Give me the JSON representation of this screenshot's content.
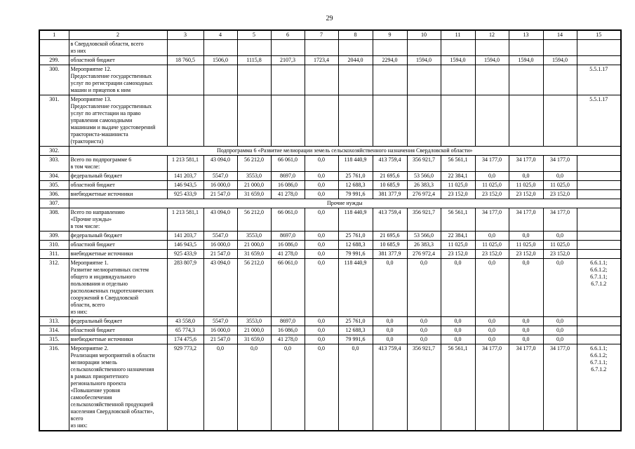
{
  "page": {
    "number": "29"
  },
  "table": {
    "header": [
      "1",
      "2",
      "3",
      "4",
      "5",
      "6",
      "7",
      "8",
      "9",
      "10",
      "11",
      "12",
      "13",
      "14",
      "15"
    ],
    "rows": [
      {
        "num": "",
        "name": "в Свердловской области, всего\nиз них",
        "values": [
          "",
          "",
          "",
          "",
          "",
          "",
          "",
          "",
          "",
          "",
          "",
          ""
        ],
        "target": ""
      },
      {
        "num": "299.",
        "name": "областной бюджет",
        "values": [
          "18 760,5",
          "1506,0",
          "1115,8",
          "2107,3",
          "1723,4",
          "2044,0",
          "2294,0",
          "1594,0",
          "1594,0",
          "1594,0",
          "1594,0",
          "1594,0"
        ],
        "target": ""
      },
      {
        "num": "300.",
        "name": "Мероприятие 12.\nПредоставление государственных\nуслуг по регистрации самоходных\nмашин и прицепов к ним",
        "values": [
          "",
          "",
          "",
          "",
          "",
          "",
          "",
          "",
          "",
          "",
          "",
          ""
        ],
        "target": "5.5.1.17"
      },
      {
        "num": "301.",
        "name": "Мероприятие 13.\nПредоставление государственных\nуслуг по аттестации на право\nуправления самоходными\nмашинами и выдаче удостоверений\nтракториста-машиниста\n(тракториста)",
        "values": [
          "",
          "",
          "",
          "",
          "",
          "",
          "",
          "",
          "",
          "",
          "",
          ""
        ],
        "target": "5.5.1.17"
      },
      {
        "num": "302.",
        "span": "Подпрограмма 6 «Развитие мелиорации земель сельскохозяйственного назначения Свердловской области»"
      },
      {
        "num": "303.",
        "name": "Всего по подпрограмме 6\nв том числе:",
        "values": [
          "1 213 581,1",
          "43 094,0",
          "56 212,0",
          "66 061,0",
          "0,0",
          "118 440,9",
          "413 759,4",
          "356 921,7",
          "56 561,1",
          "34 177,0",
          "34 177,0",
          "34 177,0"
        ],
        "target": ""
      },
      {
        "num": "304.",
        "name": "федеральный бюджет",
        "values": [
          "141 203,7",
          "5547,0",
          "3553,0",
          "8697,0",
          "0,0",
          "25 761,0",
          "21 695,6",
          "53 566,0",
          "22 384,1",
          "0,0",
          "0,0",
          "0,0"
        ],
        "target": ""
      },
      {
        "num": "305.",
        "name": "областной бюджет",
        "values": [
          "146 943,5",
          "16 000,0",
          "21 000,0",
          "16 086,0",
          "0,0",
          "12 688,3",
          "10 685,9",
          "26 383,3",
          "11 025,0",
          "11 025,0",
          "11 025,0",
          "11 025,0"
        ],
        "target": ""
      },
      {
        "num": "306.",
        "name": "внебюджетные источники",
        "values": [
          "925 433,9",
          "21 547,0",
          "31 659,0",
          "41 278,0",
          "0,0",
          "79 991,6",
          "381 377,9",
          "276 972,4",
          "23 152,0",
          "23 152,0",
          "23 152,0",
          "23 152,0"
        ],
        "target": ""
      },
      {
        "num": "307.",
        "span": "Прочие нужды"
      },
      {
        "num": "308.",
        "name": "Всего по направлению\n«Прочие нужды»\nв том числе:",
        "values": [
          "1 213 581,1",
          "43 094,0",
          "56 212,0",
          "66 061,0",
          "0,0",
          "118 440,9",
          "413 759,4",
          "356 921,7",
          "56 561,1",
          "34 177,0",
          "34 177,0",
          "34 177,0"
        ],
        "target": ""
      },
      {
        "num": "309.",
        "name": "федеральный бюджет",
        "values": [
          "141 203,7",
          "5547,0",
          "3553,0",
          "8697,0",
          "0,0",
          "25 761,0",
          "21 695,6",
          "53 566,0",
          "22 384,1",
          "0,0",
          "0,0",
          "0,0"
        ],
        "target": ""
      },
      {
        "num": "310.",
        "name": "областной бюджет",
        "values": [
          "146 943,5",
          "16 000,0",
          "21 000,0",
          "16 086,0",
          "0,0",
          "12 688,3",
          "10 685,9",
          "26 383,3",
          "11 025,0",
          "11 025,0",
          "11 025,0",
          "11 025,0"
        ],
        "target": ""
      },
      {
        "num": "311.",
        "name": "внебюджетные источники",
        "values": [
          "925 433,9",
          "21 547,0",
          "31 659,0",
          "41 278,0",
          "0,0",
          "79 991,6",
          "381 377,9",
          "276 972,4",
          "23 152,0",
          "23 152,0",
          "23 152,0",
          "23 152,0"
        ],
        "target": ""
      },
      {
        "num": "312.",
        "name": "Мероприятие 1.\nРазвитие мелиоративных систем\nобщего и индивидуального\nпользования и отдельно\nрасположенных гидротехнических\nсооружений в Свердловской\nобласти, всего\nиз них:",
        "values": [
          "283 807,9",
          "43 094,0",
          "56 212,0",
          "66 061,0",
          "0,0",
          "118 440,9",
          "0,0",
          "0,0",
          "0,0",
          "0,0",
          "0,0",
          "0,0"
        ],
        "target": "6.6.1.1;\n6.6.1.2;\n6.7.1.1;\n6.7.1.2"
      },
      {
        "num": "313.",
        "name": "федеральный бюджет",
        "values": [
          "43 558,0",
          "5547,0",
          "3553,0",
          "8697,0",
          "0,0",
          "25 761,0",
          "0,0",
          "0,0",
          "0,0",
          "0,0",
          "0,0",
          "0,0"
        ],
        "target": ""
      },
      {
        "num": "314.",
        "name": "областной бюджет",
        "values": [
          "65 774,3",
          "16 000,0",
          "21 000,0",
          "16 086,0",
          "0,0",
          "12 688,3",
          "0,0",
          "0,0",
          "0,0",
          "0,0",
          "0,0",
          "0,0"
        ],
        "target": ""
      },
      {
        "num": "315.",
        "name": "внебюджетные источники",
        "values": [
          "174 475,6",
          "21 547,0",
          "31 659,0",
          "41 278,0",
          "0,0",
          "79 991,6",
          "0,0",
          "0,0",
          "0,0",
          "0,0",
          "0,0",
          "0,0"
        ],
        "target": ""
      },
      {
        "num": "316.",
        "name": "Мероприятие 2.\nРеализация мероприятий в области\nмелиорации земель\nсельскохозяйственного назначения\nв рамках приоритетного\nрегионального проекта\n«Повышение уровня\nсамообеспечения\nсельскохозяйственной продукцией\nнаселения Свердловской области»,\nвсего\nиз них:",
        "values": [
          "929 773,2",
          "0,0",
          "0,0",
          "0,0",
          "0,0",
          "0,0",
          "413 759,4",
          "356 921,7",
          "56 561,1",
          "34 177,0",
          "34 177,0",
          "34 177,0"
        ],
        "target": "6.6.1.1;\n6.6.1.2;\n6.7.1.1;\n6.7.1.2"
      }
    ]
  }
}
